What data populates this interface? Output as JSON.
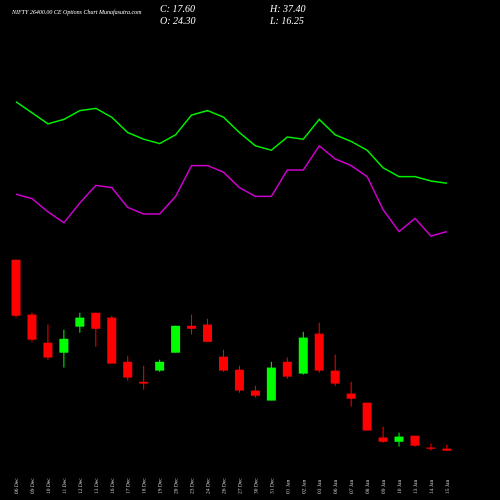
{
  "chart_data": {
    "type": "candlestick",
    "title": "NIFTY 26400.00 CE Options Chart Munafasutra.com",
    "info": [
      "C: 17.60",
      "H: 37.40",
      "O: 24.30",
      "L: 16.25"
    ],
    "categories": [
      "06 Dec",
      "09 Dec",
      "10 Dec",
      "11 Dec",
      "12 Dec",
      "13 Dec",
      "16 Dec",
      "17 Dec",
      "18 Dec",
      "19 Dec",
      "20 Dec",
      "23 Dec",
      "24 Dec",
      "26 Dec",
      "27 Dec",
      "30 Dec",
      "31 Dec",
      "01 Jan",
      "02 Jan",
      "03 Jan",
      "06 Jan",
      "07 Jan",
      "08 Jan",
      "09 Jan",
      "10 Jan",
      "13 Jan",
      "14 Jan",
      "15 Jan"
    ],
    "open": [
      648,
      467,
      374,
      341,
      427,
      473,
      457,
      311,
      245,
      282,
      341,
      430,
      434,
      328,
      285,
      216,
      183,
      311,
      272,
      404,
      282,
      206,
      176,
      61,
      47,
      67,
      28,
      24.3
    ],
    "high": [
      648,
      473,
      434,
      417,
      473,
      473,
      463,
      331,
      298,
      318,
      430,
      467,
      453,
      351,
      298,
      232,
      311,
      325,
      410,
      440,
      335,
      245,
      176,
      97,
      77,
      67,
      41,
      37.4
    ],
    "low": [
      457,
      377,
      318,
      292,
      407,
      361,
      305,
      249,
      219,
      278,
      341,
      401,
      377,
      278,
      209,
      193,
      183,
      255,
      269,
      275,
      232,
      163,
      84,
      44,
      31,
      31,
      18,
      16.25
    ],
    "close": [
      463,
      384,
      325,
      387,
      457,
      420,
      305,
      259,
      239,
      311,
      430,
      420,
      377,
      282,
      216,
      199,
      292,
      262,
      391,
      282,
      239,
      189,
      84,
      47,
      64,
      34,
      24,
      17.6
    ],
    "up_color": "#00ff00",
    "down_color": "#ff0000",
    "ylim": [
      0,
      700
    ],
    "lines": [
      {
        "color": "#00ee00",
        "values": [
          81,
          76,
          71,
          73,
          77,
          78,
          74,
          67,
          64,
          62,
          66,
          75,
          77,
          74,
          67,
          61,
          59,
          65,
          64,
          73,
          66,
          63,
          59,
          51,
          47,
          47,
          45,
          44
        ]
      },
      {
        "color": "#cc00cc",
        "values": [
          39,
          37,
          31,
          26,
          35,
          43,
          42,
          33,
          30,
          30,
          38,
          52,
          52,
          49,
          42,
          38,
          38,
          50,
          50,
          61,
          55,
          52,
          47,
          32,
          22,
          28,
          20,
          22
        ]
      }
    ],
    "y2lim": [
      0,
      100
    ]
  }
}
